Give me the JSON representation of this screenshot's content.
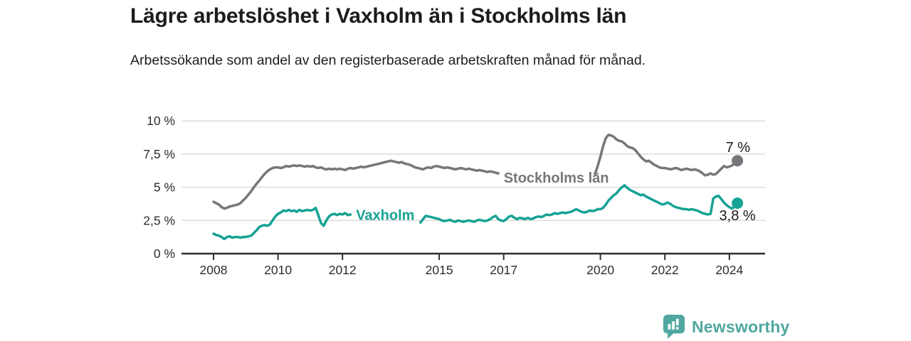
{
  "chart_data": {
    "type": "line",
    "title": "Lägre arbetslöshet i Vaxholm än i Stockholms län",
    "subtitle": "Arbetssökande som andel av den registerbaserade arbetskraften månad för månad.",
    "grid": true,
    "legend_position": "inline-labels",
    "x_start_year": 2008,
    "x_interval_months": 1,
    "xlim": [
      2007,
      2025.1
    ],
    "ylim": [
      0,
      10
    ],
    "y_axis": {
      "ticks": [
        {
          "value": 0,
          "label": "0 %"
        },
        {
          "value": 2.5,
          "label": "2,5 %"
        },
        {
          "value": 5,
          "label": "5 %"
        },
        {
          "value": 7.5,
          "label": "7,5 %"
        },
        {
          "value": 10,
          "label": "10 %"
        }
      ]
    },
    "x_axis": {
      "ticks": [
        2008,
        2010,
        2012,
        2015,
        2017,
        2020,
        2022,
        2024
      ]
    },
    "series": [
      {
        "id": "stockholms-lan",
        "name": "Stockholms län",
        "color": "#76767b",
        "end_label": "7 %",
        "end_label_position": "above",
        "label_pos": {
          "year": 2017.0,
          "value": 5.35
        },
        "values": [
          3.9,
          3.8,
          3.7,
          3.5,
          3.4,
          3.45,
          3.55,
          3.6,
          3.65,
          3.7,
          3.8,
          4.0,
          4.2,
          4.45,
          4.7,
          5.0,
          5.25,
          5.5,
          5.75,
          6.0,
          6.2,
          6.35,
          6.45,
          6.5,
          6.5,
          6.45,
          6.5,
          6.6,
          6.55,
          6.6,
          6.65,
          6.6,
          6.65,
          6.6,
          6.55,
          6.6,
          6.55,
          6.6,
          6.5,
          6.45,
          6.5,
          6.4,
          6.35,
          6.4,
          6.35,
          6.4,
          6.35,
          6.4,
          6.35,
          6.3,
          6.4,
          6.45,
          6.4,
          6.45,
          6.5,
          6.55,
          6.5,
          6.55,
          6.6,
          6.65,
          6.7,
          6.75,
          6.8,
          6.85,
          6.9,
          6.95,
          7.0,
          6.95,
          6.9,
          6.85,
          6.9,
          6.8,
          6.75,
          6.7,
          6.6,
          6.5,
          6.45,
          6.4,
          6.35,
          6.45,
          6.5,
          6.45,
          6.55,
          6.6,
          6.55,
          6.5,
          6.45,
          6.5,
          6.45,
          6.4,
          6.35,
          6.4,
          6.45,
          6.4,
          6.35,
          6.4,
          6.35,
          6.3,
          6.25,
          6.3,
          6.25,
          6.2,
          6.15,
          6.2,
          6.15,
          6.1,
          6.05,
          null,
          null,
          null,
          null,
          null,
          null,
          null,
          null,
          null,
          null,
          null,
          null,
          null,
          null,
          null,
          null,
          null,
          null,
          null,
          null,
          null,
          null,
          null,
          null,
          null,
          null,
          null,
          null,
          null,
          null,
          null,
          null,
          null,
          null,
          null,
          6.0,
          6.6,
          7.3,
          8.1,
          8.7,
          8.95,
          8.9,
          8.8,
          8.6,
          8.5,
          8.45,
          8.3,
          8.1,
          8.0,
          7.95,
          7.8,
          7.55,
          7.3,
          7.1,
          6.95,
          7.0,
          6.85,
          6.7,
          6.6,
          6.5,
          6.45,
          6.45,
          6.4,
          6.35,
          6.4,
          6.45,
          6.4,
          6.3,
          6.35,
          6.4,
          6.35,
          6.3,
          6.35,
          6.3,
          6.2,
          6.05,
          5.9,
          5.95,
          6.05,
          5.95,
          6.0,
          6.2,
          6.4,
          6.6,
          6.5,
          6.55,
          6.65,
          6.8,
          7.0
        ]
      },
      {
        "id": "vaxholm",
        "name": "Vaxholm",
        "color": "#16a294",
        "end_label": "3,8 %",
        "end_label_position": "below",
        "label_pos": {
          "year": 2012.42,
          "value": 2.55
        },
        "values": [
          1.5,
          1.4,
          1.35,
          1.25,
          1.1,
          1.25,
          1.3,
          1.2,
          1.25,
          1.25,
          1.2,
          1.25,
          1.25,
          1.3,
          1.35,
          1.55,
          1.75,
          2.0,
          2.1,
          2.15,
          2.1,
          2.2,
          2.5,
          2.8,
          3.0,
          3.1,
          3.25,
          3.2,
          3.3,
          3.2,
          3.25,
          3.15,
          3.3,
          3.2,
          3.25,
          3.3,
          3.25,
          3.3,
          3.45,
          2.9,
          2.3,
          2.1,
          2.5,
          2.8,
          2.95,
          3.0,
          2.9,
          3.0,
          2.95,
          3.05,
          2.9,
          2.95,
          null,
          null,
          null,
          null,
          null,
          null,
          null,
          null,
          null,
          null,
          null,
          null,
          null,
          null,
          null,
          null,
          null,
          null,
          null,
          null,
          null,
          null,
          null,
          null,
          null,
          2.35,
          2.6,
          2.85,
          2.8,
          2.75,
          2.7,
          2.65,
          2.6,
          2.5,
          2.45,
          2.5,
          2.55,
          2.45,
          2.4,
          2.5,
          2.45,
          2.4,
          2.45,
          2.5,
          2.45,
          2.4,
          2.5,
          2.55,
          2.5,
          2.45,
          2.5,
          2.6,
          2.75,
          2.85,
          2.6,
          2.5,
          2.45,
          2.6,
          2.8,
          2.85,
          2.7,
          2.6,
          2.7,
          2.65,
          2.6,
          2.7,
          2.6,
          2.65,
          2.75,
          2.8,
          2.75,
          2.85,
          2.95,
          2.9,
          2.95,
          3.05,
          3.0,
          3.05,
          3.1,
          3.05,
          3.1,
          3.15,
          3.25,
          3.35,
          3.25,
          3.15,
          3.1,
          3.15,
          3.25,
          3.2,
          3.25,
          3.35,
          3.35,
          3.45,
          3.7,
          4.0,
          4.2,
          4.4,
          4.55,
          4.8,
          5.0,
          5.15,
          4.95,
          4.8,
          4.7,
          4.6,
          4.5,
          4.4,
          4.45,
          4.3,
          4.2,
          4.1,
          4.0,
          3.9,
          3.8,
          3.7,
          3.75,
          3.85,
          3.75,
          3.6,
          3.5,
          3.45,
          3.4,
          3.35,
          3.35,
          3.3,
          3.35,
          3.3,
          3.25,
          3.15,
          3.05,
          3.0,
          2.95,
          3.0,
          4.15,
          4.3,
          4.35,
          4.1,
          3.85,
          3.65,
          3.5,
          3.4,
          3.55,
          3.8
        ]
      }
    ]
  },
  "footer": {
    "brand": "Newsworthy",
    "logo_icon": "bar-chart-speech-bubble-icon",
    "brand_color": "#4FA7A0"
  }
}
